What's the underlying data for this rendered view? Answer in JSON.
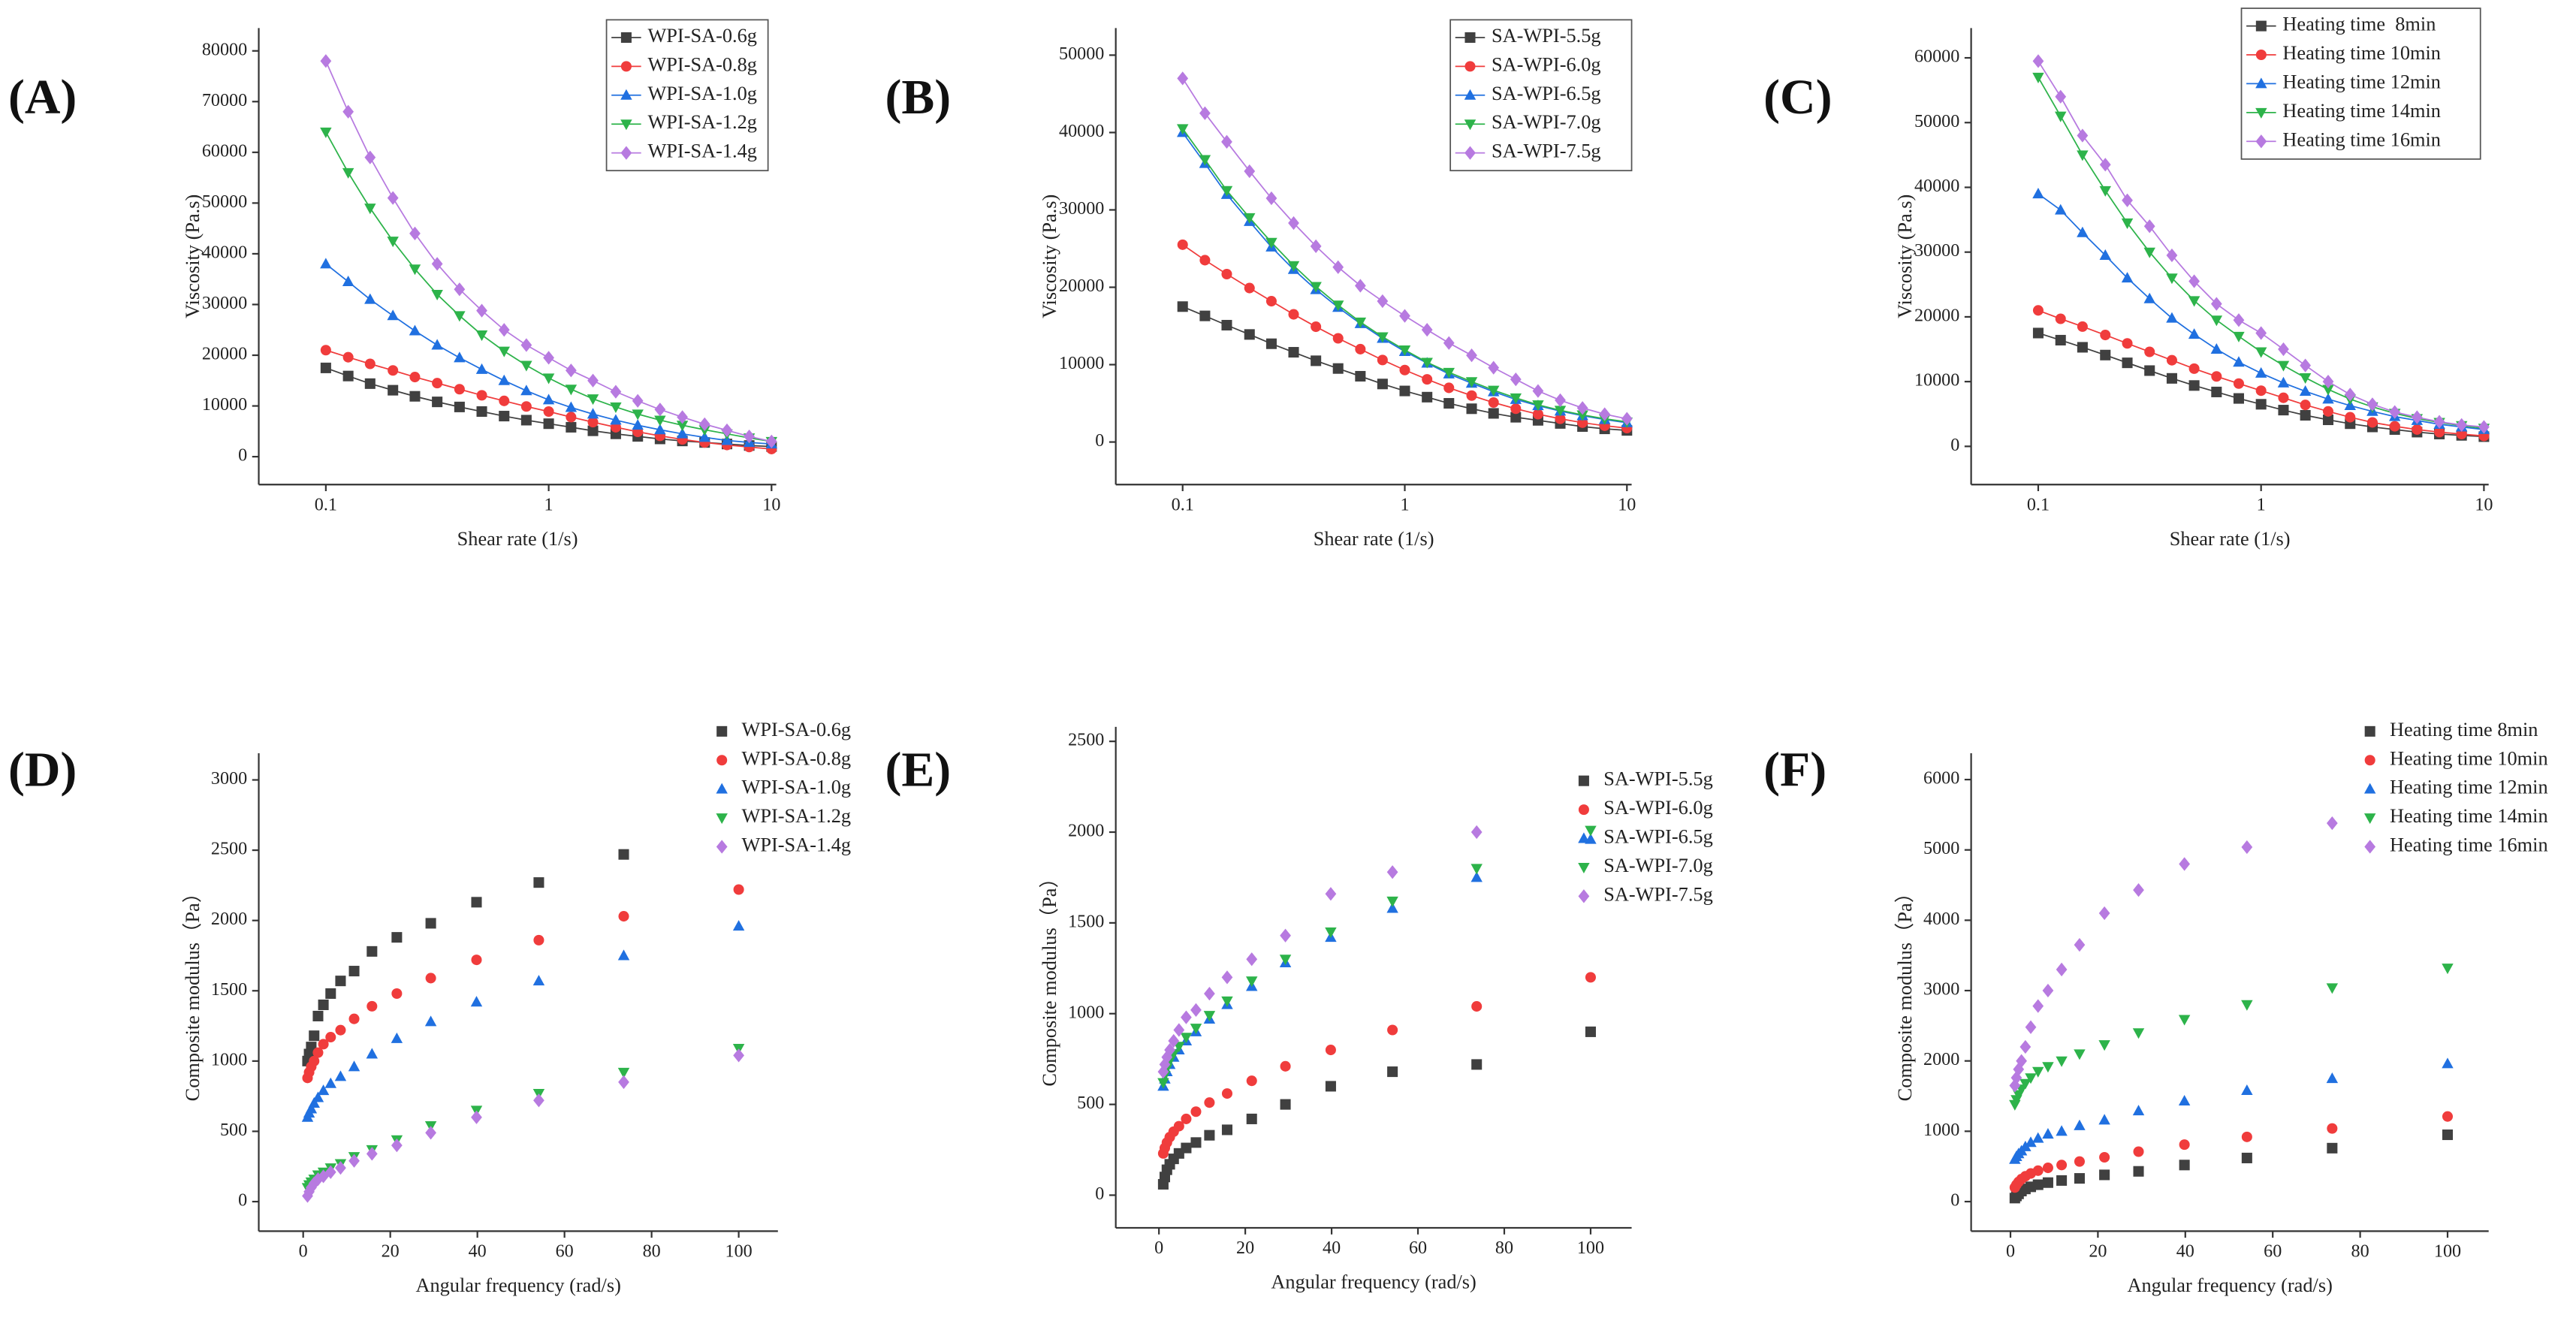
{
  "chart_data": [
    {
      "type": "line",
      "label": "(A)",
      "xlabel": "Shear rate (1/s)",
      "ylabel": "Viscosity (Pa.s)",
      "xscale": "log",
      "x": [
        0.1,
        0.126,
        0.158,
        0.2,
        0.251,
        0.316,
        0.398,
        0.501,
        0.631,
        0.794,
        1,
        1.26,
        1.58,
        2,
        2.51,
        3.16,
        3.98,
        5.01,
        6.31,
        7.94,
        10
      ],
      "xlim": [
        0.05,
        10.5
      ],
      "xticks": [
        0.1,
        1,
        10
      ],
      "ylim": [
        -5500,
        84500
      ],
      "yticks": [
        0,
        10000,
        20000,
        30000,
        40000,
        50000,
        60000,
        70000,
        80000
      ],
      "series": [
        {
          "name": "WPI-SA-0.6g",
          "color": "#404040",
          "marker": "square",
          "values": [
            17500,
            15900,
            14400,
            13100,
            11900,
            10800,
            9800,
            8900,
            8000,
            7200,
            6500,
            5800,
            5100,
            4500,
            4000,
            3500,
            3100,
            2800,
            2500,
            2200,
            2000
          ]
        },
        {
          "name": "WPI-SA-0.8g",
          "color": "#f03c3c",
          "marker": "circle",
          "values": [
            21000,
            19600,
            18300,
            17000,
            15700,
            14500,
            13300,
            12100,
            11000,
            9900,
            8900,
            7800,
            6800,
            5800,
            4900,
            4100,
            3400,
            2800,
            2300,
            1900,
            1500
          ]
        },
        {
          "name": "WPI-SA-1.0g",
          "color": "#2070e0",
          "marker": "triangle-up",
          "values": [
            38000,
            34500,
            31000,
            27800,
            24800,
            22000,
            19500,
            17200,
            15000,
            13000,
            11200,
            9700,
            8400,
            7200,
            6200,
            5300,
            4500,
            3800,
            3200,
            2800,
            2500
          ]
        },
        {
          "name": "WPI-SA-1.2g",
          "color": "#2db34a",
          "marker": "triangle-down",
          "values": [
            64000,
            56000,
            49000,
            42500,
            37000,
            32000,
            27800,
            24000,
            20800,
            18000,
            15500,
            13300,
            11400,
            9800,
            8400,
            7200,
            6200,
            5300,
            4500,
            3700,
            3000
          ]
        },
        {
          "name": "WPI-SA-1.4g",
          "color": "#b77ae0",
          "marker": "diamond",
          "values": [
            78000,
            68000,
            59000,
            51000,
            44000,
            38000,
            33000,
            28800,
            25000,
            22000,
            19500,
            17000,
            15000,
            12800,
            11000,
            9300,
            7800,
            6400,
            5200,
            4000,
            3000
          ]
        }
      ]
    },
    {
      "type": "line",
      "label": "(B)",
      "xlabel": "Shear rate (1/s)",
      "ylabel": "Viscosity (Pa.s)",
      "xscale": "log",
      "x": [
        0.1,
        0.126,
        0.158,
        0.2,
        0.251,
        0.316,
        0.398,
        0.501,
        0.631,
        0.794,
        1,
        1.26,
        1.58,
        2,
        2.51,
        3.16,
        3.98,
        5.01,
        6.31,
        7.94,
        10
      ],
      "xlim": [
        0.05,
        10.5
      ],
      "xticks": [
        0.1,
        1,
        10
      ],
      "ylim": [
        -5500,
        53500
      ],
      "yticks": [
        0,
        10000,
        20000,
        30000,
        40000,
        50000
      ],
      "series": [
        {
          "name": "SA-WPI-5.5g",
          "color": "#404040",
          "marker": "square",
          "values": [
            17500,
            16300,
            15100,
            13900,
            12700,
            11600,
            10500,
            9500,
            8500,
            7500,
            6600,
            5800,
            5000,
            4300,
            3700,
            3200,
            2800,
            2400,
            2000,
            1700,
            1500
          ]
        },
        {
          "name": "SA-WPI-6.0g",
          "color": "#f03c3c",
          "marker": "circle",
          "values": [
            25500,
            23500,
            21700,
            19900,
            18200,
            16500,
            14900,
            13400,
            12000,
            10600,
            9300,
            8100,
            7000,
            6000,
            5100,
            4300,
            3600,
            3000,
            2500,
            2100,
            1800
          ]
        },
        {
          "name": "SA-WPI-6.5g",
          "color": "#2070e0",
          "marker": "triangle-up",
          "values": [
            40000,
            36000,
            32000,
            28500,
            25200,
            22300,
            19700,
            17400,
            15300,
            13400,
            11700,
            10200,
            8800,
            7600,
            6500,
            5500,
            4700,
            4000,
            3400,
            2900,
            2500
          ]
        },
        {
          "name": "SA-WPI-7.0g",
          "color": "#2db34a",
          "marker": "triangle-down",
          "values": [
            40500,
            36500,
            32500,
            29000,
            25800,
            22800,
            20100,
            17700,
            15500,
            13600,
            11900,
            10300,
            9000,
            7800,
            6700,
            5700,
            4800,
            4100,
            3500,
            3000,
            2600
          ]
        },
        {
          "name": "SA-WPI-7.5g",
          "color": "#b77ae0",
          "marker": "diamond",
          "values": [
            47000,
            42500,
            38800,
            35000,
            31500,
            28300,
            25300,
            22600,
            20200,
            18200,
            16300,
            14500,
            12800,
            11200,
            9600,
            8100,
            6600,
            5400,
            4400,
            3600,
            3000
          ]
        }
      ]
    },
    {
      "type": "line",
      "label": "(C)",
      "xlabel": "Shear rate (1/s)",
      "ylabel": "Viscosity (Pa.s)",
      "xscale": "log",
      "x": [
        0.1,
        0.126,
        0.158,
        0.2,
        0.251,
        0.316,
        0.398,
        0.501,
        0.631,
        0.794,
        1,
        1.26,
        1.58,
        2,
        2.51,
        3.16,
        3.98,
        5.01,
        6.31,
        7.94,
        10
      ],
      "xlim": [
        0.05,
        10.5
      ],
      "xticks": [
        0.1,
        1,
        10
      ],
      "ylim": [
        -5900,
        64600
      ],
      "yticks": [
        0,
        10000,
        20000,
        30000,
        40000,
        50000,
        60000
      ],
      "series": [
        {
          "name": "Heating time  8min",
          "color": "#404040",
          "marker": "square",
          "values": [
            17500,
            16400,
            15300,
            14100,
            12900,
            11700,
            10500,
            9400,
            8400,
            7400,
            6500,
            5600,
            4800,
            4100,
            3500,
            3000,
            2600,
            2200,
            1900,
            1700,
            1500
          ]
        },
        {
          "name": "Heating time 10min",
          "color": "#f03c3c",
          "marker": "circle",
          "values": [
            21000,
            19700,
            18500,
            17200,
            15900,
            14600,
            13300,
            12000,
            10800,
            9700,
            8600,
            7500,
            6400,
            5400,
            4500,
            3700,
            3100,
            2600,
            2200,
            1900,
            1600
          ]
        },
        {
          "name": "Heating time 12min",
          "color": "#2070e0",
          "marker": "triangle-up",
          "values": [
            39000,
            36500,
            33000,
            29500,
            26000,
            22800,
            19800,
            17300,
            15000,
            13000,
            11300,
            9800,
            8500,
            7300,
            6300,
            5400,
            4600,
            4000,
            3400,
            3000,
            2600
          ]
        },
        {
          "name": "Heating time 14min",
          "color": "#2db34a",
          "marker": "triangle-down",
          "values": [
            57000,
            51000,
            45000,
            39500,
            34500,
            30000,
            26000,
            22500,
            19500,
            17000,
            14600,
            12500,
            10600,
            8800,
            7300,
            6100,
            5100,
            4300,
            3700,
            3200,
            2800
          ]
        },
        {
          "name": "Heating time 16min",
          "color": "#b77ae0",
          "marker": "diamond",
          "values": [
            59500,
            54000,
            48000,
            43500,
            38000,
            34000,
            29500,
            25500,
            22000,
            19500,
            17500,
            15000,
            12500,
            10000,
            8000,
            6500,
            5300,
            4500,
            3800,
            3300,
            3000
          ]
        }
      ]
    },
    {
      "type": "scatter",
      "label": "(D)",
      "xlabel": "Angular frequency (rad/s)",
      "ylabel": "Composite modulus（Pa）",
      "x": [
        1,
        1.36,
        1.85,
        2.51,
        3.41,
        4.64,
        6.31,
        8.58,
        11.7,
        15.8,
        21.5,
        29.3,
        39.8,
        54.1,
        73.6,
        100
      ],
      "xlim": [
        -10.2,
        109
      ],
      "xticks": [
        0,
        20,
        40,
        60,
        80,
        100
      ],
      "ylim": [
        -210,
        3190
      ],
      "yticks": [
        0,
        500,
        1000,
        1500,
        2000,
        2500,
        3000
      ],
      "series": [
        {
          "name": "WPI-SA-0.6g",
          "color": "#404040",
          "marker": "square",
          "values": [
            1000,
            1050,
            1100,
            1180,
            1320,
            1400,
            1480,
            1570,
            1640,
            1780,
            1880,
            1980,
            2130,
            2270,
            2470,
            null
          ]
        },
        {
          "name": "WPI-SA-0.8g",
          "color": "#f03c3c",
          "marker": "circle",
          "values": [
            880,
            920,
            960,
            1000,
            1060,
            1120,
            1170,
            1220,
            1300,
            1390,
            1480,
            1590,
            1720,
            1860,
            2030,
            2220
          ]
        },
        {
          "name": "WPI-SA-1.0g",
          "color": "#2070e0",
          "marker": "triangle-up",
          "values": [
            600,
            630,
            660,
            700,
            740,
            790,
            840,
            890,
            960,
            1050,
            1160,
            1280,
            1420,
            1570,
            1750,
            1960
          ]
        },
        {
          "name": "WPI-SA-1.2g",
          "color": "#2db34a",
          "marker": "triangle-down",
          "values": [
            100,
            120,
            140,
            160,
            190,
            210,
            240,
            270,
            320,
            370,
            440,
            540,
            650,
            770,
            920,
            1090
          ]
        },
        {
          "name": "WPI-SA-1.4g",
          "color": "#b77ae0",
          "marker": "diamond",
          "values": [
            40,
            70,
            100,
            130,
            160,
            180,
            210,
            240,
            290,
            340,
            400,
            490,
            600,
            720,
            850,
            1040
          ]
        }
      ]
    },
    {
      "type": "scatter",
      "label": "(E)",
      "xlabel": "Angular frequency (rad/s)",
      "ylabel": "Composite modulus（Pa）",
      "x": [
        1,
        1.36,
        1.85,
        2.51,
        3.41,
        4.64,
        6.31,
        8.58,
        11.7,
        15.8,
        21.5,
        29.3,
        39.8,
        54.1,
        73.6,
        100
      ],
      "xlim": [
        -10,
        109.5
      ],
      "xticks": [
        0,
        20,
        40,
        60,
        80,
        100
      ],
      "ylim": [
        -180,
        2580
      ],
      "yticks": [
        0,
        500,
        1000,
        1500,
        2000,
        2500
      ],
      "series": [
        {
          "name": "SA-WPI-5.5g",
          "color": "#404040",
          "marker": "square",
          "values": [
            60,
            100,
            140,
            170,
            200,
            230,
            260,
            290,
            330,
            360,
            420,
            500,
            600,
            680,
            720,
            900
          ]
        },
        {
          "name": "SA-WPI-6.0g",
          "color": "#f03c3c",
          "marker": "circle",
          "values": [
            230,
            260,
            290,
            320,
            350,
            380,
            420,
            460,
            510,
            560,
            630,
            710,
            800,
            910,
            1040,
            1200
          ]
        },
        {
          "name": "SA-WPI-6.5g",
          "color": "#2070e0",
          "marker": "triangle-up",
          "values": [
            600,
            640,
            680,
            720,
            760,
            800,
            850,
            900,
            970,
            1050,
            1150,
            1280,
            1420,
            1580,
            1750,
            1960
          ]
        },
        {
          "name": "SA-WPI-7.0g",
          "color": "#2db34a",
          "marker": "triangle-down",
          "values": [
            620,
            660,
            700,
            740,
            780,
            820,
            870,
            920,
            990,
            1070,
            1180,
            1300,
            1450,
            1620,
            1800,
            2010
          ]
        },
        {
          "name": "SA-WPI-7.5g",
          "color": "#b77ae0",
          "marker": "diamond",
          "values": [
            680,
            720,
            760,
            800,
            850,
            910,
            980,
            1020,
            1110,
            1200,
            1300,
            1430,
            1660,
            1780,
            2000,
            null
          ]
        }
      ]
    },
    {
      "type": "scatter",
      "label": "(F)",
      "xlabel": "Angular frequency (rad/s)",
      "ylabel": "Composite modulus（Pa）",
      "x": [
        1,
        1.36,
        1.85,
        2.51,
        3.41,
        4.64,
        6.31,
        8.58,
        11.7,
        15.8,
        21.5,
        29.3,
        39.8,
        54.1,
        73.6,
        100
      ],
      "xlim": [
        -9,
        109.4
      ],
      "xticks": [
        0,
        20,
        40,
        60,
        80,
        100
      ],
      "ylim": [
        -420,
        6375
      ],
      "yticks": [
        0,
        1000,
        2000,
        3000,
        4000,
        5000,
        6000
      ],
      "series": [
        {
          "name": "Heating time 8min",
          "color": "#404040",
          "marker": "square",
          "values": [
            50,
            80,
            110,
            150,
            180,
            210,
            240,
            270,
            300,
            330,
            380,
            430,
            520,
            620,
            760,
            950
          ]
        },
        {
          "name": "Heating time 10min",
          "color": "#f03c3c",
          "marker": "circle",
          "values": [
            200,
            240,
            280,
            320,
            360,
            400,
            440,
            480,
            520,
            570,
            630,
            710,
            810,
            920,
            1040,
            1210
          ]
        },
        {
          "name": "Heating time 12min",
          "color": "#2070e0",
          "marker": "triangle-up",
          "values": [
            600,
            640,
            680,
            720,
            780,
            840,
            900,
            960,
            1000,
            1080,
            1160,
            1290,
            1430,
            1580,
            1750,
            1960
          ]
        },
        {
          "name": "Heating time 14min",
          "color": "#2db34a",
          "marker": "triangle-down",
          "values": [
            1380,
            1450,
            1520,
            1600,
            1680,
            1760,
            1850,
            1920,
            2000,
            2100,
            2230,
            2400,
            2590,
            2800,
            3040,
            3320
          ]
        },
        {
          "name": "Heating time 16min",
          "color": "#b77ae0",
          "marker": "diamond",
          "values": [
            1650,
            1760,
            1880,
            2000,
            2200,
            2480,
            2780,
            3000,
            3300,
            3650,
            4100,
            4430,
            4800,
            5040,
            5380,
            null
          ]
        }
      ]
    }
  ]
}
